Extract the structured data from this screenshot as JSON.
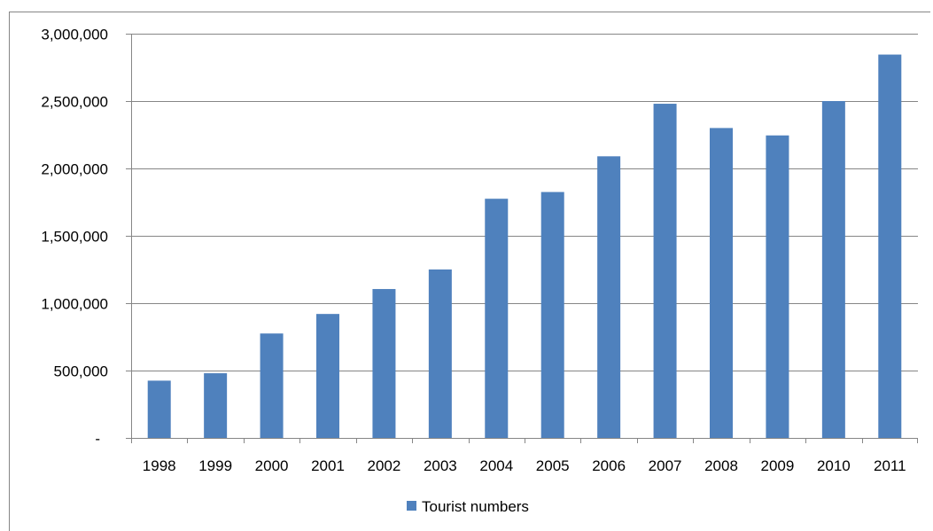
{
  "chart_data": {
    "type": "bar",
    "categories": [
      "1998",
      "1999",
      "2000",
      "2001",
      "2002",
      "2003",
      "2004",
      "2005",
      "2006",
      "2007",
      "2008",
      "2009",
      "2010",
      "2011"
    ],
    "series": [
      {
        "name": "Tourist numbers",
        "color": "#4f81bd",
        "values": [
          425000,
          480000,
          775000,
          920000,
          1105000,
          1250000,
          1775000,
          1825000,
          2090000,
          2480000,
          2300000,
          2245000,
          2500000,
          2845000
        ]
      }
    ],
    "title": "",
    "xlabel": "",
    "ylabel": "",
    "ylim": [
      0,
      3000000
    ],
    "yticks": [
      0,
      500000,
      1000000,
      1500000,
      2000000,
      2500000,
      3000000
    ],
    "ytick_labels": [
      "-",
      "500,000",
      "1,000,000",
      "1,500,000",
      "2,000,000",
      "2,500,000",
      "3,000,000"
    ],
    "grid": true,
    "legend_position": "bottom"
  }
}
